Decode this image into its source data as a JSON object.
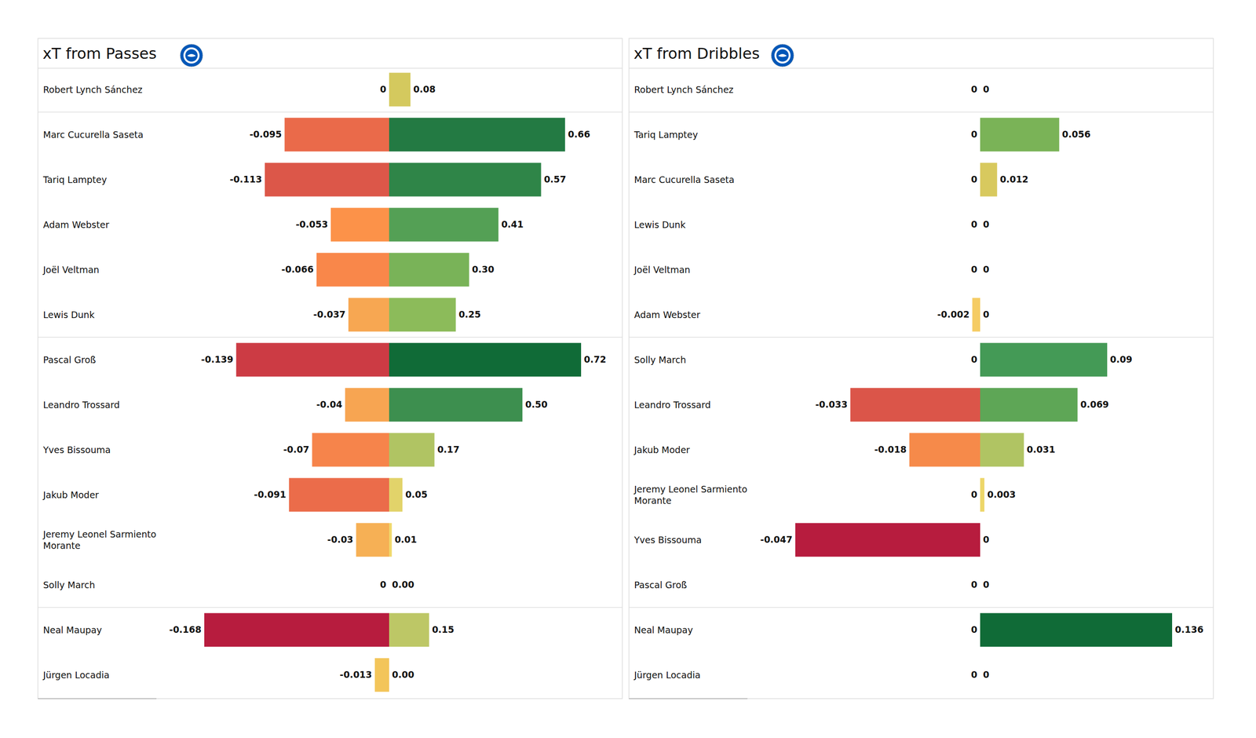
{
  "chart_data": [
    {
      "type": "bar",
      "title": "xT from Passes",
      "orientation": "horizontal",
      "data_labels": true,
      "tick_labels": "y",
      "categories": [
        "Robert Lynch Sánchez",
        "Marc Cucurella Saseta",
        "Tariq Lamptey",
        "Adam Webster",
        "Joël Veltman",
        "Lewis Dunk",
        "Pascal Groß",
        "Leandro Trossard",
        "Yves Bissouma",
        "Jakub Moder",
        "Jeremy Leonel Sarmiento Morante",
        "Solly March",
        "Neal Maupay",
        "Jürgen Locadia"
      ],
      "xlim": [
        -0.168,
        0.72
      ],
      "series": [
        {
          "values": [
            0,
            -0.095,
            -0.113,
            -0.053,
            -0.066,
            -0.037,
            -0.139,
            -0.04,
            -0.07,
            -0.091,
            -0.03,
            0,
            -0.168,
            -0.013
          ],
          "colors": [
            "#f2d86b",
            "#ea6a4a",
            "#dc5749",
            "#fc9249",
            "#f9874a",
            "#f7a752",
            "#cc3b44",
            "#f7a552",
            "#f6844b",
            "#eb6c4a",
            "#f6b055",
            "#f2d86b",
            "#b71c3e",
            "#f3c55a"
          ]
        },
        {
          "values": [
            0.08,
            0.66,
            0.57,
            0.41,
            0.3,
            0.25,
            0.72,
            0.5,
            0.17,
            0.05,
            0.01,
            0.0,
            0.15,
            0.0
          ],
          "value_labels": [
            "0.08",
            "0.66",
            "0.57",
            "0.41",
            "0.30",
            "0.25",
            "0.72",
            "0.50",
            "0.17",
            "0.05",
            "0.01",
            "0.00",
            "0.15",
            "0.00"
          ],
          "colors": [
            "#d4c95e",
            "#237a43",
            "#2f8548",
            "#54a055",
            "#79b358",
            "#8cbb5a",
            "#106b37",
            "#3d8f4f",
            "#b0c463",
            "#e2d36a",
            "#f0d86b",
            "#f2d86b",
            "#bdc766",
            "#f2d86b"
          ]
        }
      ]
    },
    {
      "type": "bar",
      "title": "xT from Dribbles",
      "orientation": "horizontal",
      "data_labels": true,
      "tick_labels": "y",
      "categories": [
        "Robert Lynch Sánchez",
        "Tariq Lamptey",
        "Marc Cucurella Saseta",
        "Lewis Dunk",
        "Joël Veltman",
        "Adam Webster",
        "Solly March",
        "Leandro Trossard",
        "Jakub Moder",
        "Jeremy Leonel Sarmiento Morante",
        "Yves Bissouma",
        "Pascal Groß",
        "Neal Maupay",
        "Jürgen Locadia"
      ],
      "xlim": [
        -0.047,
        0.136
      ],
      "series": [
        {
          "values": [
            0,
            0,
            0,
            0,
            0,
            -0.002,
            0,
            -0.033,
            -0.018,
            0,
            -0.047,
            0,
            0,
            0
          ],
          "colors": [
            "#f0d76a",
            "#f0d76a",
            "#f0d76a",
            "#f0d76a",
            "#f0d76a",
            "#f5cc64",
            "#f0d76a",
            "#db5549",
            "#f68a4a",
            "#f0d76a",
            "#b71c3e",
            "#f0d76a",
            "#f0d76a",
            "#f0d76a"
          ]
        },
        {
          "values": [
            0,
            0.056,
            0.012,
            0,
            0,
            0,
            0.09,
            0.069,
            0.031,
            0.003,
            0,
            0,
            0.136,
            0
          ],
          "colors": [
            "#f0d76a",
            "#7ab357",
            "#d8c95e",
            "#f0d76a",
            "#f0d76a",
            "#f0d76a",
            "#449a56",
            "#5ea656",
            "#b0c463",
            "#edd66a",
            "#f0d76a",
            "#f0d76a",
            "#106b37",
            "#f0d76a"
          ]
        }
      ]
    }
  ]
}
